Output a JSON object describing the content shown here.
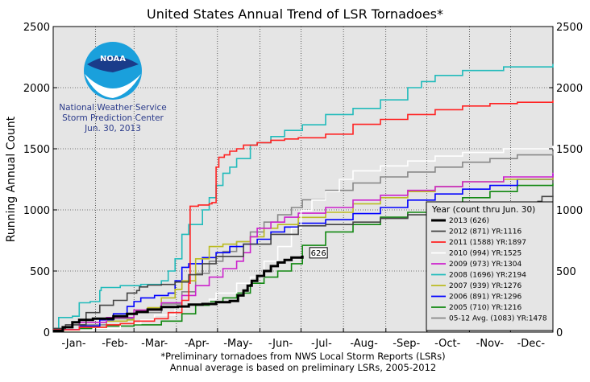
{
  "chart_data": {
    "type": "line",
    "title": "United States Annual Trend of LSR Tornadoes*",
    "ylabel": "Running Annual Count",
    "xlabel": "",
    "ylim": [
      0,
      2500
    ],
    "xlim": [
      1,
      366
    ],
    "x_unit": "day of year",
    "month_labels": [
      "-Jan-",
      "-Feb-",
      "-Mar-",
      "-Apr-",
      "-May-",
      "-Jun-",
      "-Jul-",
      "-Aug-",
      "-Sep-",
      "-Oct-",
      "-Nov-",
      "-Dec-"
    ],
    "y_ticks": [
      0,
      500,
      1000,
      1500,
      2000,
      2500
    ],
    "y_tick_labels": [
      "0",
      "500",
      "1000",
      "1500",
      "2000",
      "2500"
    ],
    "grid": true,
    "legend_position": "lower-right",
    "legend_title": "Year (count thru Jun. 30)",
    "annotation": {
      "label": "626",
      "x": 183,
      "y": 626
    },
    "org_text": [
      "National Weather Service",
      "Storm Prediction Center",
      "Jun. 30, 2013"
    ],
    "logo_text": "NOAA",
    "footnotes": [
      "*Preliminary tornadoes from NWS Local Storm Reports (LSRs)",
      "Annual average is based on preliminary LSRs, 2005-2012"
    ],
    "series": [
      {
        "name": "2013 (626)",
        "color": "#000000",
        "x": [
          1,
          8,
          15,
          20,
          30,
          45,
          55,
          62,
          70,
          80,
          92,
          100,
          110,
          120,
          130,
          136,
          140,
          143,
          146,
          150,
          155,
          160,
          165,
          170,
          175,
          183
        ],
        "y": [
          10,
          40,
          80,
          100,
          110,
          130,
          150,
          165,
          185,
          205,
          210,
          225,
          230,
          245,
          255,
          300,
          340,
          380,
          420,
          460,
          500,
          540,
          570,
          590,
          610,
          626
        ]
      },
      {
        "name": "2012 (871) YR:1116",
        "color": "#444444",
        "x": [
          1,
          10,
          25,
          35,
          45,
          55,
          62,
          64,
          70,
          80,
          90,
          100,
          110,
          120,
          140,
          160,
          180,
          200,
          220,
          240,
          260,
          280,
          300,
          320,
          340,
          355,
          358,
          366
        ],
        "y": [
          30,
          60,
          160,
          220,
          260,
          320,
          340,
          370,
          385,
          390,
          410,
          470,
          560,
          620,
          720,
          800,
          870,
          880,
          900,
          930,
          960,
          990,
          1010,
          1030,
          1050,
          1070,
          1110,
          1116
        ]
      },
      {
        "name": "2011 (1588) YR:1897",
        "color": "#ff2222",
        "x": [
          1,
          20,
          40,
          50,
          60,
          75,
          85,
          95,
          100,
          101,
          107,
          115,
          117,
          120,
          122,
          126,
          130,
          135,
          140,
          150,
          160,
          170,
          180,
          200,
          220,
          240,
          260,
          280,
          300,
          320,
          340,
          366
        ],
        "y": [
          20,
          40,
          60,
          70,
          90,
          110,
          160,
          260,
          400,
          1030,
          1040,
          1050,
          1060,
          1350,
          1430,
          1450,
          1480,
          1500,
          1530,
          1550,
          1570,
          1580,
          1590,
          1620,
          1700,
          1740,
          1780,
          1820,
          1850,
          1870,
          1880,
          1897
        ]
      },
      {
        "name": "2010 (994) YR:1525",
        "color": "#ffffff",
        "x": [
          1,
          30,
          50,
          65,
          75,
          90,
          100,
          115,
          120,
          135,
          145,
          155,
          165,
          175,
          182,
          190,
          200,
          210,
          220,
          240,
          260,
          280,
          300,
          330,
          366
        ],
        "y": [
          10,
          30,
          70,
          100,
          140,
          200,
          230,
          270,
          320,
          400,
          450,
          580,
          700,
          850,
          994,
          1080,
          1150,
          1250,
          1320,
          1360,
          1400,
          1440,
          1470,
          1500,
          1525
        ]
      },
      {
        "name": "2009 (973) YR:1304",
        "color": "#cc22cc",
        "x": [
          1,
          20,
          40,
          60,
          80,
          95,
          105,
          115,
          125,
          135,
          140,
          145,
          150,
          160,
          170,
          180,
          200,
          220,
          240,
          260,
          280,
          300,
          330,
          366
        ],
        "y": [
          20,
          80,
          120,
          180,
          240,
          300,
          380,
          450,
          520,
          580,
          650,
          780,
          850,
          900,
          940,
          973,
          1020,
          1080,
          1120,
          1160,
          1190,
          1230,
          1270,
          1304
        ]
      },
      {
        "name": "2008 (1696) YR:2194",
        "color": "#22bbbb",
        "x": [
          1,
          5,
          15,
          20,
          28,
          35,
          36,
          50,
          65,
          80,
          85,
          90,
          95,
          100,
          110,
          115,
          120,
          125,
          130,
          135,
          145,
          150,
          160,
          170,
          183,
          200,
          220,
          240,
          260,
          270,
          280,
          300,
          330,
          366
        ],
        "y": [
          30,
          120,
          130,
          240,
          250,
          340,
          365,
          380,
          390,
          420,
          500,
          600,
          800,
          880,
          1000,
          1100,
          1200,
          1300,
          1350,
          1420,
          1530,
          1550,
          1600,
          1650,
          1696,
          1780,
          1830,
          1900,
          2000,
          2050,
          2100,
          2140,
          2170,
          2194
        ]
      },
      {
        "name": "2007 (939) YR:1276",
        "color": "#bbbb22",
        "x": [
          1,
          20,
          40,
          55,
          60,
          70,
          80,
          90,
          95,
          105,
          115,
          125,
          135,
          145,
          155,
          165,
          180,
          200,
          220,
          240,
          260,
          280,
          300,
          330,
          366
        ],
        "y": [
          10,
          40,
          90,
          100,
          180,
          200,
          280,
          350,
          420,
          600,
          700,
          720,
          740,
          780,
          850,
          880,
          939,
          980,
          1050,
          1100,
          1150,
          1190,
          1230,
          1250,
          1276
        ]
      },
      {
        "name": "2006 (891) YR:1296",
        "color": "#0000ff",
        "x": [
          1,
          20,
          35,
          45,
          55,
          60,
          65,
          75,
          85,
          90,
          95,
          100,
          110,
          120,
          130,
          140,
          150,
          160,
          170,
          180,
          200,
          220,
          240,
          260,
          280,
          300,
          320,
          340,
          366
        ],
        "y": [
          20,
          50,
          100,
          150,
          210,
          250,
          280,
          300,
          320,
          420,
          530,
          560,
          610,
          650,
          700,
          720,
          760,
          820,
          860,
          891,
          920,
          970,
          1020,
          1080,
          1130,
          1170,
          1200,
          1250,
          1296
        ]
      },
      {
        "name": "2005 (710) YR:1216",
        "color": "#118811",
        "x": [
          1,
          20,
          40,
          60,
          80,
          95,
          105,
          115,
          125,
          135,
          145,
          155,
          165,
          175,
          183,
          200,
          220,
          240,
          260,
          280,
          300,
          320,
          340,
          366
        ],
        "y": [
          10,
          30,
          50,
          60,
          90,
          150,
          220,
          250,
          280,
          320,
          400,
          450,
          500,
          560,
          710,
          820,
          880,
          940,
          980,
          1040,
          1100,
          1150,
          1200,
          1216
        ]
      },
      {
        "name": "05-12 Avg. (1083) YR:1478",
        "color": "#888888",
        "x": [
          1,
          20,
          40,
          60,
          80,
          95,
          105,
          115,
          125,
          135,
          145,
          155,
          165,
          175,
          183,
          200,
          220,
          240,
          260,
          280,
          300,
          320,
          340,
          366
        ],
        "y": [
          20,
          60,
          110,
          160,
          230,
          330,
          480,
          580,
          660,
          740,
          820,
          900,
          960,
          1020,
          1083,
          1160,
          1220,
          1270,
          1310,
          1350,
          1390,
          1420,
          1450,
          1478
        ]
      }
    ]
  }
}
